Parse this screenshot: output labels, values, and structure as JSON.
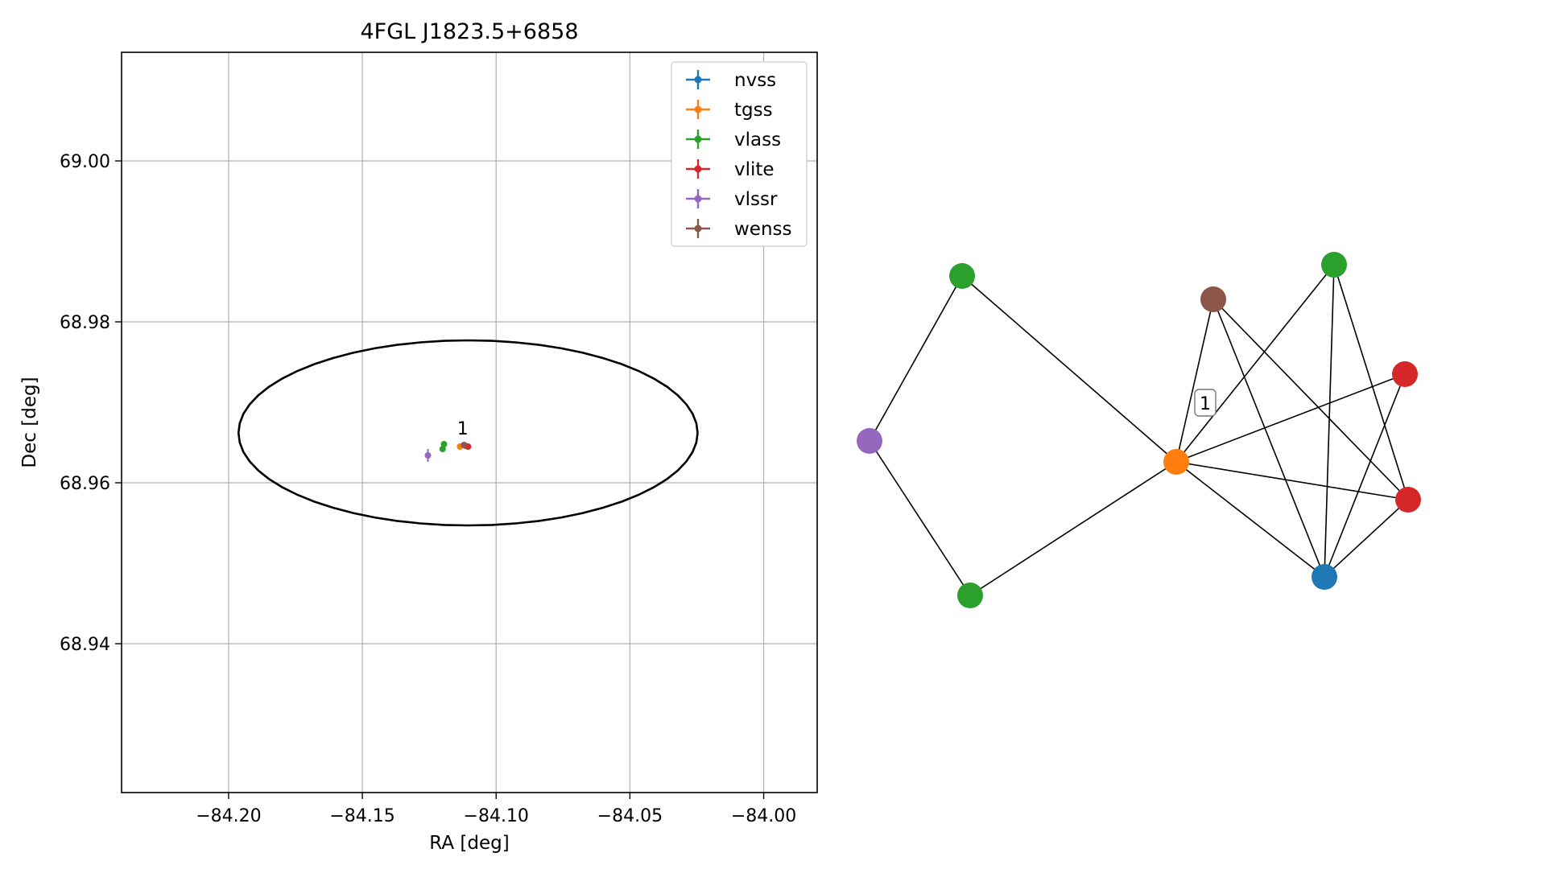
{
  "chart_data": [
    {
      "type": "scatter",
      "title": "4FGL J1823.5+6858",
      "xlabel": "RA [deg]",
      "ylabel": "Dec [deg]",
      "xlim": [
        -84.24,
        -83.98
      ],
      "ylim": [
        68.9215,
        69.0135
      ],
      "xticks": [
        -84.2,
        -84.15,
        -84.1,
        -84.05,
        -84.0
      ],
      "xtick_labels": [
        "−84.20",
        "−84.15",
        "−84.10",
        "−84.05",
        "−84.00"
      ],
      "yticks": [
        68.94,
        68.96,
        68.98,
        69.0
      ],
      "ytick_labels": [
        "68.94",
        "68.96",
        "68.98",
        "69.00"
      ],
      "grid": true,
      "legend_position": "top-right",
      "series": [
        {
          "name": "nvss",
          "color": "#1f77b4",
          "points": [
            {
              "x": -84.1115,
              "y": 68.9646,
              "xerr": 0.0008,
              "yerr": 0.0003
            }
          ]
        },
        {
          "name": "tgss",
          "color": "#ff7f0e",
          "points": [
            {
              "x": -84.1135,
              "y": 68.9645,
              "xerr": 0.001,
              "yerr": 0.0004
            }
          ]
        },
        {
          "name": "vlass",
          "color": "#2ca02c",
          "points": [
            {
              "x": -84.1195,
              "y": 68.9648,
              "xerr": 0.0002,
              "yerr": 0.0002
            },
            {
              "x": -84.12,
              "y": 68.9642,
              "xerr": 0.0002,
              "yerr": 0.0002
            }
          ]
        },
        {
          "name": "vlite",
          "color": "#d62728",
          "points": [
            {
              "x": -84.1105,
              "y": 68.9645,
              "xerr": 0.0008,
              "yerr": 0.0003
            }
          ]
        },
        {
          "name": "vlssr",
          "color": "#9467bd",
          "points": [
            {
              "x": -84.1255,
              "y": 68.9634,
              "xerr": 0.0003,
              "yerr": 0.0008
            }
          ]
        },
        {
          "name": "wenss",
          "color": "#8c564b",
          "points": [
            {
              "x": -84.112,
              "y": 68.9647,
              "xerr": 0.0006,
              "yerr": 0.0003
            }
          ]
        }
      ],
      "ellipse": {
        "center_x": -84.1105,
        "center_y": 68.9662,
        "semi_axis_ra": 0.0858,
        "semi_axis_dec": 0.0115,
        "color": "#000000"
      },
      "annotations": [
        {
          "text": "1",
          "x": -84.1125,
          "y": 68.9656
        }
      ]
    },
    {
      "type": "network",
      "nodes": [
        {
          "id": "n0",
          "color": "#2ca02c"
        },
        {
          "id": "n1",
          "color": "#9467bd"
        },
        {
          "id": "n2",
          "color": "#2ca02c"
        },
        {
          "id": "n3",
          "color": "#ff7f0e"
        },
        {
          "id": "n4",
          "color": "#8c564b"
        },
        {
          "id": "n5",
          "color": "#2ca02c"
        },
        {
          "id": "n6",
          "color": "#d62728"
        },
        {
          "id": "n7",
          "color": "#d62728"
        },
        {
          "id": "n8",
          "color": "#1f77b4"
        }
      ],
      "edges": [
        [
          "n0",
          "n1"
        ],
        [
          "n0",
          "n3"
        ],
        [
          "n1",
          "n2"
        ],
        [
          "n2",
          "n3"
        ],
        [
          "n3",
          "n4"
        ],
        [
          "n3",
          "n5"
        ],
        [
          "n3",
          "n6"
        ],
        [
          "n3",
          "n7"
        ],
        [
          "n3",
          "n8"
        ],
        [
          "n4",
          "n7"
        ],
        [
          "n4",
          "n8"
        ],
        [
          "n5",
          "n7"
        ],
        [
          "n5",
          "n8"
        ],
        [
          "n6",
          "n8"
        ],
        [
          "n7",
          "n8"
        ]
      ],
      "label": {
        "text": "1"
      }
    }
  ]
}
